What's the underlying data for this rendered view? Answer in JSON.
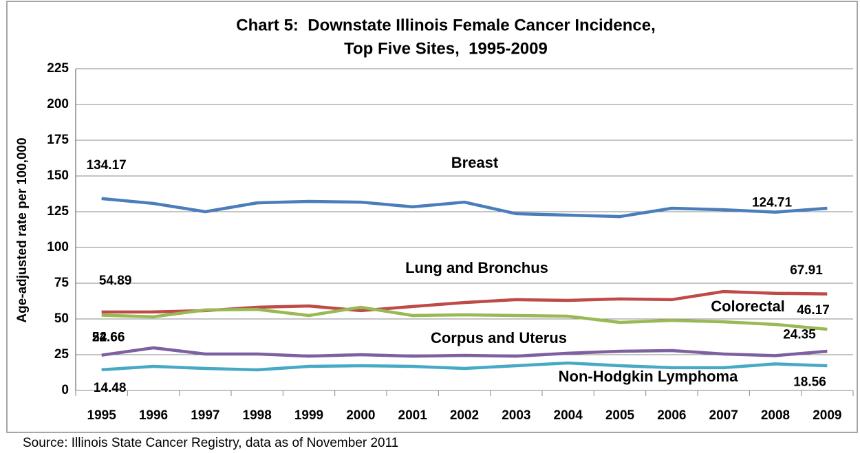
{
  "chart_data": {
    "type": "line",
    "title": [
      "Chart 5:  Downstate Illinois Female Cancer Incidence,",
      "Top Five Sites,  1995-2009"
    ],
    "y_label": "Age-adjusted rate per 100,000",
    "source": "Source: Illinois State Cancer Registry, data as of November 2011",
    "categories": [
      "1995",
      "1996",
      "1997",
      "1998",
      "1999",
      "2000",
      "2001",
      "2002",
      "2003",
      "2004",
      "2005",
      "2006",
      "2007",
      "2008",
      "2009"
    ],
    "ylim": [
      0,
      225
    ],
    "yticks": [
      0,
      25,
      50,
      75,
      100,
      125,
      150,
      175,
      200,
      225
    ],
    "series": [
      {
        "name": "Breast",
        "color": "#4a7ebb",
        "values": [
          134.17,
          130.8,
          125,
          131.2,
          132.2,
          131.7,
          128.4,
          131.7,
          123.6,
          122.6,
          121.6,
          127.4,
          126.4,
          124.71,
          127.4
        ],
        "value_labels": [
          "134.17",
          null,
          null,
          null,
          null,
          null,
          null,
          null,
          null,
          null,
          null,
          null,
          null,
          "124.71",
          null
        ]
      },
      {
        "name": "Lung and Bronchus",
        "color": "#be4b48",
        "values": [
          54.89,
          54.9,
          55.8,
          58.2,
          59.1,
          55.8,
          58.7,
          61.5,
          63.5,
          63,
          64,
          63.5,
          69.2,
          67.91,
          67.5
        ],
        "value_labels": [
          "54.89",
          null,
          null,
          null,
          null,
          null,
          null,
          null,
          null,
          null,
          null,
          null,
          null,
          "67.91",
          null
        ]
      },
      {
        "name": "Colorectal",
        "color": "#98b954",
        "values": [
          52.66,
          51.5,
          56.3,
          56.7,
          52.4,
          58.2,
          52.4,
          52.9,
          52.4,
          51.9,
          47.6,
          49,
          48,
          46.17,
          42.8
        ],
        "value_labels": [
          "52.66",
          null,
          null,
          null,
          null,
          null,
          null,
          null,
          null,
          null,
          null,
          null,
          null,
          "46.17",
          null
        ]
      },
      {
        "name": "Corpus and Uterus",
        "color": "#7d60a0",
        "values": [
          24.66,
          29.8,
          25.5,
          25.5,
          24,
          25,
          24,
          24.5,
          24,
          26,
          27.4,
          27.9,
          25.5,
          24.35,
          27.4
        ],
        "value_labels": [
          "24.66",
          null,
          null,
          null,
          null,
          null,
          null,
          null,
          null,
          null,
          null,
          null,
          null,
          "24.35",
          null
        ]
      },
      {
        "name": "Non-Hodgkin Lymphoma",
        "color": "#46aac5",
        "values": [
          14.48,
          16.8,
          15.4,
          14.4,
          16.8,
          17.3,
          16.8,
          15.4,
          17.3,
          19.2,
          17.3,
          15.9,
          15.9,
          18.56,
          17.3
        ],
        "value_labels": [
          "14.48",
          null,
          null,
          null,
          null,
          null,
          null,
          null,
          null,
          null,
          null,
          null,
          null,
          "18.56",
          null
        ]
      }
    ]
  }
}
